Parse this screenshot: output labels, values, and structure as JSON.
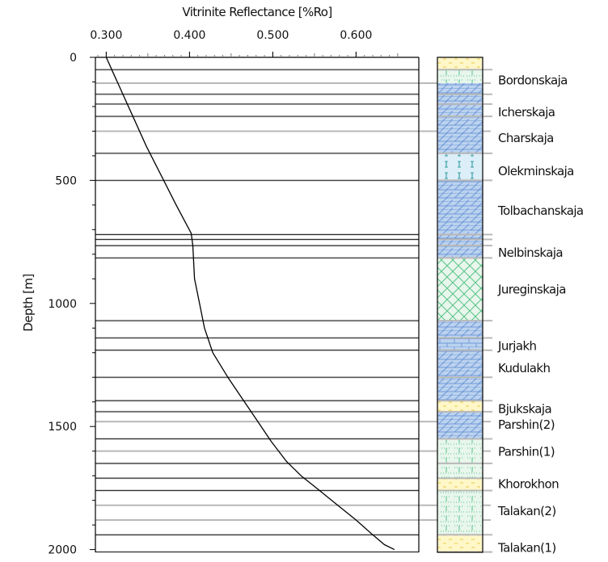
{
  "colors": {
    "grid": "#b8b8b8",
    "boundary": "#000000",
    "curve": "#000000",
    "sandstone": "#fff7c8",
    "limestone": "#bcd3ef",
    "limestone_hatch": "#6f98d8",
    "marl": "#e8f6ec",
    "marl_hatch": "#58c489",
    "sand_dots": "#e8c84a",
    "gypsum_tick": "#3aa0a6"
  },
  "chart_data": {
    "type": "line",
    "title": "",
    "xlabel": "Vitrinite Reflectance [%Ro]",
    "ylabel": "Depth [m]",
    "xlim": [
      0.287,
      0.651
    ],
    "ylim": [
      2010,
      0
    ],
    "x_ticks": [
      0.3,
      0.4,
      0.5,
      0.6
    ],
    "x_tick_labels": [
      "0.300",
      "0.400",
      "0.500",
      "0.600"
    ],
    "y_ticks": [
      0,
      500,
      1000,
      1500,
      2000
    ],
    "y_tick_labels": [
      "0",
      "500",
      "1000",
      "1500",
      "2000"
    ],
    "grid": "horizontal",
    "series": [
      {
        "x": [
          0.3,
          0.308,
          0.316,
          0.324,
          0.332,
          0.348,
          0.366,
          0.384,
          0.402,
          0.404,
          0.406,
          0.412,
          0.418,
          0.428,
          0.446,
          0.466,
          0.482,
          0.498,
          0.516,
          0.534,
          0.556,
          0.578,
          0.6,
          0.62,
          0.634,
          0.646
        ],
        "y": [
          0,
          60,
          120,
          180,
          240,
          360,
          480,
          600,
          715,
          765,
          900,
          1000,
          1100,
          1200,
          1300,
          1400,
          1480,
          1560,
          1640,
          1700,
          1760,
          1820,
          1880,
          1940,
          1980,
          2000
        ]
      }
    ],
    "formation_boundaries": [
      50,
      150,
      190,
      240,
      390,
      500,
      720,
      740,
      765,
      815,
      1070,
      1140,
      1190,
      1300,
      1395,
      1440,
      1550,
      1650,
      1710,
      1760,
      1940,
      2010
    ],
    "minor_gridlines": [
      105,
      300,
      1480,
      1600,
      1820,
      1880
    ],
    "formations": [
      {
        "name": "Bordonskaja",
        "top": 50,
        "bottom": 150,
        "label_depth": 90
      },
      {
        "name": "Icherskaja",
        "top": 150,
        "bottom": 240,
        "label_depth": 220
      },
      {
        "name": "Charskaja",
        "top": 240,
        "bottom": 390,
        "label_depth": 325
      },
      {
        "name": "Olekminskaja",
        "top": 390,
        "bottom": 500,
        "label_depth": 460
      },
      {
        "name": "Tolbachanskaja",
        "top": 500,
        "bottom": 765,
        "label_depth": 620
      },
      {
        "name": "Nelbinskaja",
        "top": 765,
        "bottom": 815,
        "label_depth": 790
      },
      {
        "name": "Jureginskaja",
        "top": 815,
        "bottom": 1070,
        "label_depth": 940
      },
      {
        "name": "Jurjakh",
        "top": 1070,
        "bottom": 1190,
        "label_depth": 1170
      },
      {
        "name": "Kudulakh",
        "top": 1190,
        "bottom": 1395,
        "label_depth": 1260
      },
      {
        "name": "Bjukskaja",
        "top": 1395,
        "bottom": 1440,
        "label_depth": 1425
      },
      {
        "name": "Parshin(2)",
        "top": 1440,
        "bottom": 1550,
        "label_depth": 1490
      },
      {
        "name": "Parshin(1)",
        "top": 1550,
        "bottom": 1710,
        "label_depth": 1600
      },
      {
        "name": "Khorokhon",
        "top": 1710,
        "bottom": 1760,
        "label_depth": 1730
      },
      {
        "name": "Talakan(2)",
        "top": 1760,
        "bottom": 1940,
        "label_depth": 1840
      },
      {
        "name": "Talakan(1)",
        "top": 1940,
        "bottom": 2010,
        "label_depth": 1990
      }
    ],
    "lithology_column": [
      {
        "top": -15,
        "bottom": 50,
        "pattern": "sandstone"
      },
      {
        "top": 50,
        "bottom": 105,
        "pattern": "marl"
      },
      {
        "top": 105,
        "bottom": 390,
        "pattern": "limestone"
      },
      {
        "top": 390,
        "bottom": 500,
        "pattern": "gypsum"
      },
      {
        "top": 500,
        "bottom": 740,
        "pattern": "limestone"
      },
      {
        "top": 740,
        "bottom": 815,
        "pattern": "limestone"
      },
      {
        "top": 815,
        "bottom": 1070,
        "pattern": "crosshatch"
      },
      {
        "top": 1070,
        "bottom": 1140,
        "pattern": "limestone"
      },
      {
        "top": 1140,
        "bottom": 1190,
        "pattern": "brick"
      },
      {
        "top": 1190,
        "bottom": 1395,
        "pattern": "limestone"
      },
      {
        "top": 1395,
        "bottom": 1440,
        "pattern": "sandstone"
      },
      {
        "top": 1440,
        "bottom": 1550,
        "pattern": "limestone"
      },
      {
        "top": 1550,
        "bottom": 1710,
        "pattern": "marl"
      },
      {
        "top": 1710,
        "bottom": 1760,
        "pattern": "sandstone"
      },
      {
        "top": 1760,
        "bottom": 1940,
        "pattern": "marl"
      },
      {
        "top": 1940,
        "bottom": 2010,
        "pattern": "sandstone"
      }
    ]
  }
}
